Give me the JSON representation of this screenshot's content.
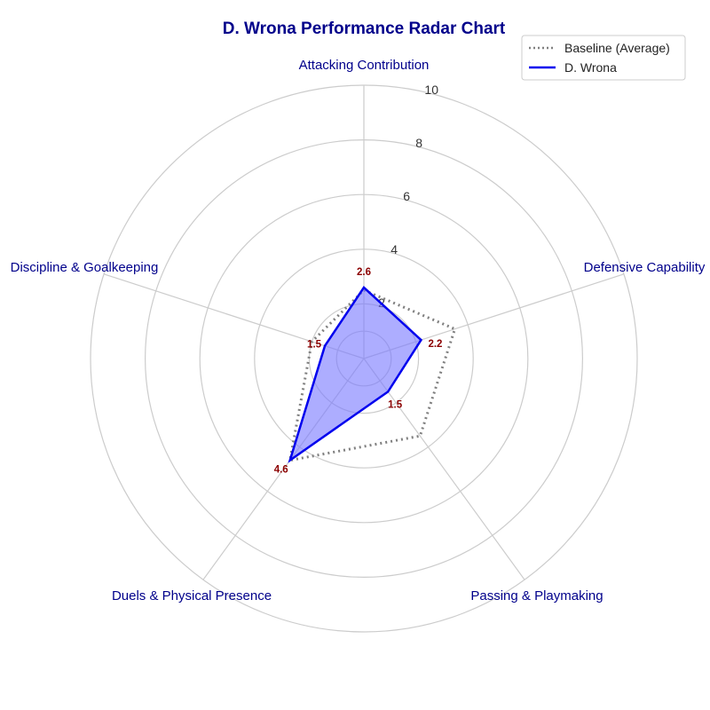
{
  "colors": {
    "title": "#00008b",
    "axis_label": "#00008b",
    "grid": "#cccccc",
    "player_line": "#0000ee",
    "player_fill": "#7777ff",
    "baseline_line": "#808080",
    "value_label": "#8b0000"
  },
  "chart_data": {
    "type": "radar",
    "title": "D. Wrona Performance Radar Chart",
    "categories": [
      "Attacking Contribution",
      "Defensive Capability",
      "Passing & Playmaking",
      "Duels & Physical Presence",
      "Discipline & Goalkeeping"
    ],
    "rlim": [
      0,
      10
    ],
    "rticks": [
      2,
      4,
      6,
      8,
      10
    ],
    "grid": true,
    "legend_placement": "top-right",
    "series": [
      {
        "name": "Baseline (Average)",
        "style": "dotted",
        "values": [
          2.5,
          3.5,
          3.5,
          4.6,
          2.0
        ]
      },
      {
        "name": "D. Wrona",
        "style": "solid",
        "filled": true,
        "values": [
          2.6,
          2.2,
          1.5,
          4.6,
          1.5
        ]
      }
    ],
    "value_labels": [
      "2.6",
      "2.2",
      "1.5",
      "4.6",
      "1.5"
    ]
  }
}
